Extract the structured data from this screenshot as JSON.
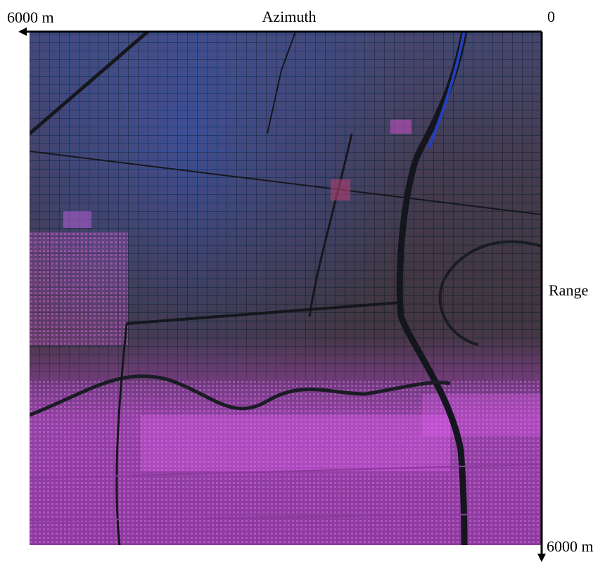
{
  "labels": {
    "azimuth_end": "6000 m",
    "azimuth_title": "Azimuth",
    "azimuth_start": "0",
    "range_title": "Range",
    "range_end": "6000 m"
  }
}
